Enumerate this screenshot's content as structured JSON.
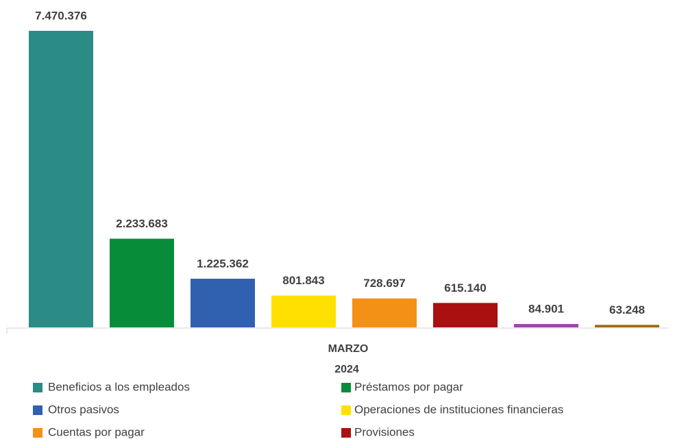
{
  "chart_data": {
    "type": "bar",
    "categories": [
      "MARZO"
    ],
    "category_group": "2024",
    "series": [
      {
        "name": "Beneficios a los empleados",
        "color": "#2a8c85",
        "values": [
          7470376
        ],
        "value_labels": [
          "7.470.376"
        ]
      },
      {
        "name": "Préstamos por pagar",
        "color": "#078d3a",
        "values": [
          2233683
        ],
        "value_labels": [
          "2.233.683"
        ]
      },
      {
        "name": "Otros pasivos",
        "color": "#3060b0",
        "values": [
          1225362
        ],
        "value_labels": [
          "1.225.362"
        ]
      },
      {
        "name": "Operaciones de instituciones financieras",
        "color": "#ffe000",
        "values": [
          801843
        ],
        "value_labels": [
          "801.843"
        ]
      },
      {
        "name": "Cuentas por pagar",
        "color": "#f39016",
        "values": [
          728697
        ],
        "value_labels": [
          "728.697"
        ]
      },
      {
        "name": "Provisiones",
        "color": "#aa1010",
        "values": [
          615140
        ],
        "value_labels": [
          "615.140"
        ]
      },
      {
        "color": "#9a49a8",
        "values": [
          84901
        ],
        "value_labels": [
          "84.901"
        ]
      },
      {
        "color": "#a06a10",
        "values": [
          63248
        ],
        "value_labels": [
          "63.248"
        ]
      }
    ],
    "legend": "bottom"
  }
}
